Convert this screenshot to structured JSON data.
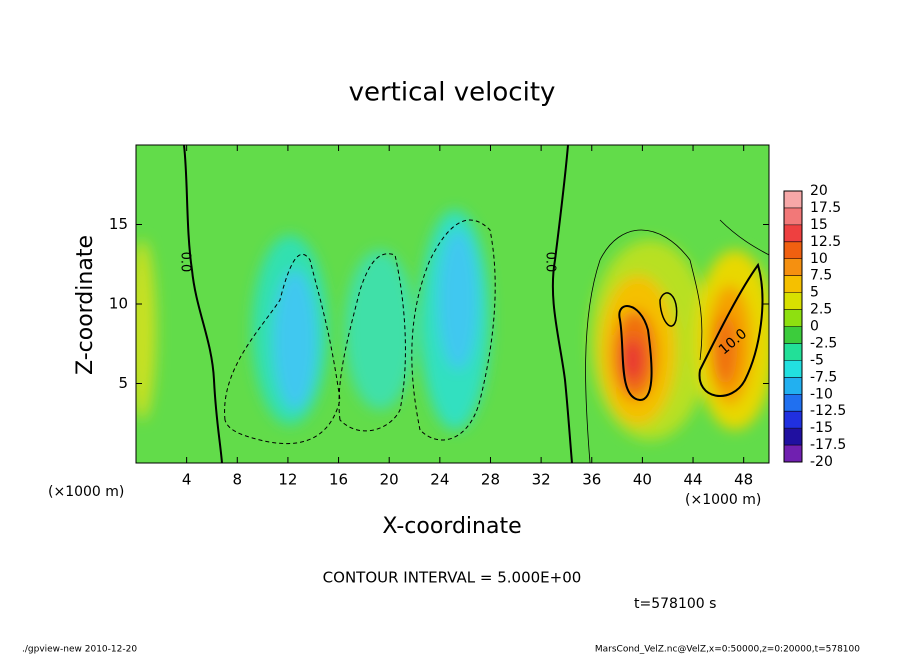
{
  "chart_data": {
    "type": "contour",
    "title": "vertical velocity",
    "x_label": "X-coordinate",
    "y_label": "Z-coordinate",
    "x_unit": "(×1000 m)",
    "xlim": [
      0,
      50
    ],
    "xticks": [
      4,
      8,
      12,
      16,
      20,
      24,
      28,
      32,
      36,
      40,
      44,
      48
    ],
    "ylim": [
      0,
      20
    ],
    "yticks": [
      5,
      10,
      15
    ],
    "colorbar": {
      "levels": [
        20,
        17.5,
        15,
        12.5,
        10,
        7.5,
        5,
        2.5,
        0,
        -2.5,
        -5,
        -7.5,
        -10,
        -12.5,
        -15,
        -17.5,
        -20
      ],
      "colors": [
        "#f7a8a8",
        "#f27878",
        "#ee4040",
        "#f06010",
        "#f59010",
        "#f5c000",
        "#d8e000",
        "#8ee010",
        "#3ccc3c",
        "#22e098",
        "#22e0e0",
        "#22b0f0",
        "#2070f0",
        "#2030e0",
        "#2010a0",
        "#7020b0"
      ]
    },
    "contour_labels": [
      "0.0",
      "10.0"
    ],
    "contour_interval_label": "CONTOUR INTERVAL = 5.000E+00",
    "time_label": "t=578100 s",
    "footer_left": "./gpview-new  2010-12-20",
    "footer_right": "MarsCond_VelZ.nc@VelZ,x=0:50000,z=0:20000,t=578100"
  }
}
